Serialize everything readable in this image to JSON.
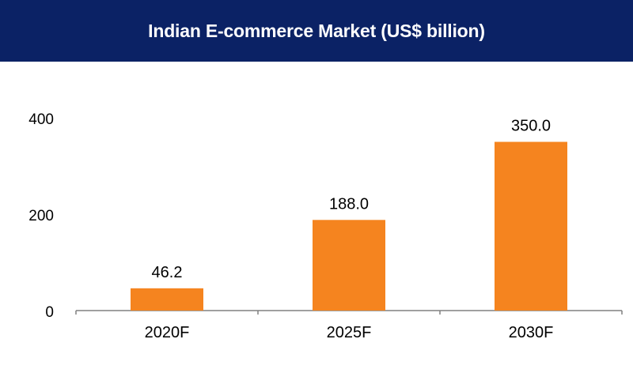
{
  "chart_data": {
    "type": "bar",
    "title": "Indian E-commerce Market (US$ billion)",
    "categories": [
      "2020F",
      "2025F",
      "2030F"
    ],
    "values": [
      46.2,
      188.0,
      350.0
    ],
    "data_labels": [
      "46.2",
      "188.0",
      "350.0"
    ],
    "y_ticks": [
      0,
      200,
      400
    ],
    "y_tick_labels": [
      "0",
      "200",
      "400"
    ],
    "ylim": [
      0,
      400
    ],
    "xlabel": "",
    "ylabel": "",
    "grid": false,
    "legend": "none",
    "colors": {
      "bar": "#f5841f",
      "title_background": "#0b2265",
      "title_text": "#ffffff",
      "axis": "#808080"
    }
  }
}
